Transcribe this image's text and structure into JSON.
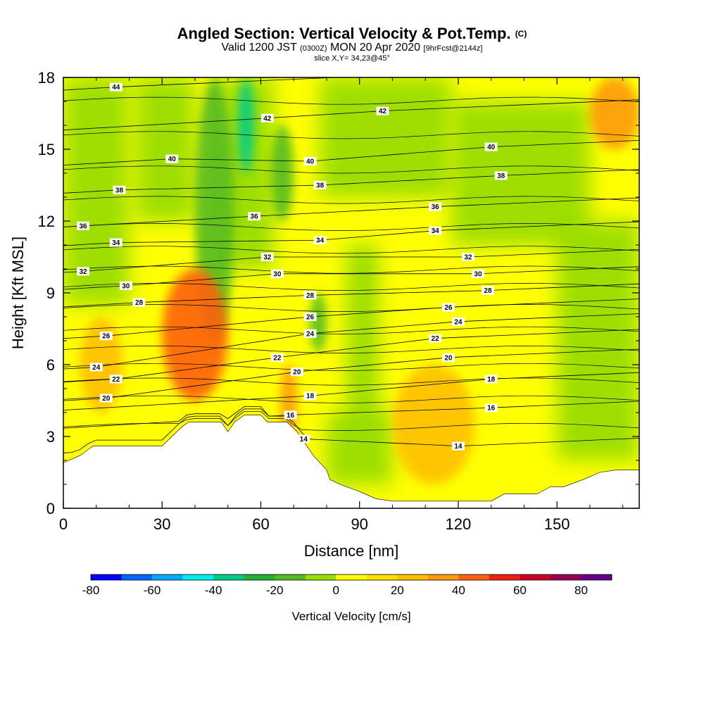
{
  "header": {
    "title_main": "Angled Section: Vertical Velocity & Pot.Temp.",
    "title_unit": "(C)",
    "valid_prefix": "Valid 1200 JST",
    "valid_utc": "(0300Z)",
    "valid_date": "MON 20 Apr 2020",
    "forecast": "[9hrFcst@2144z]",
    "slice": "slice X,Y= 34,23@45°"
  },
  "chart_data": {
    "type": "heatmap",
    "xlabel": "Distance [nm]",
    "ylabel": "Height [Kft MSL]",
    "xlim": [
      0,
      175
    ],
    "ylim": [
      0,
      18
    ],
    "x_ticks": [
      0,
      30,
      60,
      90,
      120,
      150
    ],
    "y_ticks": [
      0,
      3,
      6,
      9,
      12,
      15,
      18
    ],
    "colorbar": {
      "title": "Vertical Velocity [cm/s]",
      "range": [
        -80,
        90
      ],
      "step": 10,
      "labels": [
        -80,
        -60,
        -40,
        -20,
        0,
        20,
        40,
        60,
        80
      ],
      "colors": [
        "#0000ff",
        "#0066ff",
        "#00aaff",
        "#00eeee",
        "#00cc88",
        "#22b030",
        "#55bb22",
        "#99dd00",
        "#ffff00",
        "#ffe000",
        "#ffc000",
        "#ff9a10",
        "#ff6010",
        "#ee2010",
        "#cc0022",
        "#990055",
        "#660088"
      ]
    },
    "terrain_heights_kft": [
      [
        0,
        1.9
      ],
      [
        5,
        2.2
      ],
      [
        9,
        2.6
      ],
      [
        13,
        2.6
      ],
      [
        20,
        2.6
      ],
      [
        30,
        2.6
      ],
      [
        33,
        3.0
      ],
      [
        36,
        3.4
      ],
      [
        38,
        3.6
      ],
      [
        45,
        3.6
      ],
      [
        48,
        3.6
      ],
      [
        50,
        3.2
      ],
      [
        52,
        3.6
      ],
      [
        55,
        3.9
      ],
      [
        60,
        3.9
      ],
      [
        62,
        3.6
      ],
      [
        68,
        3.6
      ],
      [
        71,
        3.2
      ],
      [
        74,
        2.6
      ],
      [
        76,
        2.2
      ],
      [
        78,
        1.9
      ],
      [
        80,
        1.6
      ],
      [
        81,
        1.2
      ],
      [
        84,
        1.0
      ],
      [
        90,
        0.7
      ],
      [
        95,
        0.4
      ],
      [
        100,
        0.3
      ],
      [
        130,
        0.3
      ],
      [
        134,
        0.6
      ],
      [
        144,
        0.6
      ],
      [
        148,
        0.9
      ],
      [
        152,
        0.9
      ],
      [
        158,
        1.2
      ],
      [
        163,
        1.5
      ],
      [
        168,
        1.6
      ],
      [
        175,
        1.6
      ]
    ],
    "updraft_regions": [
      {
        "x": [
          30,
          50
        ],
        "y": [
          4.5,
          10
        ],
        "value": 40
      },
      {
        "x": [
          5,
          18
        ],
        "y": [
          4,
          8
        ],
        "value": 25
      },
      {
        "x": [
          100,
          125
        ],
        "y": [
          1,
          6
        ],
        "value": 25
      },
      {
        "x": [
          160,
          175
        ],
        "y": [
          15,
          18
        ],
        "value": 30
      },
      {
        "x": [
          66,
          71
        ],
        "y": [
          3,
          6
        ],
        "value": 30
      }
    ],
    "downdraft_regions": [
      {
        "x": [
          40,
          52
        ],
        "y": [
          7,
          18
        ],
        "value": -20
      },
      {
        "x": [
          53,
          58
        ],
        "y": [
          14,
          18
        ],
        "value": -40
      },
      {
        "x": [
          75,
          80
        ],
        "y": [
          6.5,
          9
        ],
        "value": -20
      },
      {
        "x": [
          63,
          70
        ],
        "y": [
          12,
          16
        ],
        "value": -15
      }
    ],
    "theta_contour_labels": [
      {
        "x": 16,
        "y": 17.6,
        "text": "44"
      },
      {
        "x": 62,
        "y": 16.3,
        "text": "42"
      },
      {
        "x": 97,
        "y": 16.6,
        "text": "42"
      },
      {
        "x": 33,
        "y": 14.6,
        "text": "40"
      },
      {
        "x": 75,
        "y": 14.5,
        "text": "40"
      },
      {
        "x": 130,
        "y": 15.1,
        "text": "40"
      },
      {
        "x": 17,
        "y": 13.3,
        "text": "38"
      },
      {
        "x": 78,
        "y": 13.5,
        "text": "38"
      },
      {
        "x": 133,
        "y": 13.9,
        "text": "38"
      },
      {
        "x": 6,
        "y": 11.8,
        "text": "36"
      },
      {
        "x": 58,
        "y": 12.2,
        "text": "36"
      },
      {
        "x": 113,
        "y": 12.6,
        "text": "36"
      },
      {
        "x": 16,
        "y": 11.1,
        "text": "34"
      },
      {
        "x": 78,
        "y": 11.2,
        "text": "34"
      },
      {
        "x": 113,
        "y": 11.6,
        "text": "34"
      },
      {
        "x": 6,
        "y": 9.9,
        "text": "32"
      },
      {
        "x": 62,
        "y": 10.5,
        "text": "32"
      },
      {
        "x": 123,
        "y": 10.5,
        "text": "32"
      },
      {
        "x": 19,
        "y": 9.3,
        "text": "30"
      },
      {
        "x": 65,
        "y": 9.8,
        "text": "30"
      },
      {
        "x": 126,
        "y": 9.8,
        "text": "30"
      },
      {
        "x": 23,
        "y": 8.6,
        "text": "28"
      },
      {
        "x": 75,
        "y": 8.9,
        "text": "28"
      },
      {
        "x": 129,
        "y": 9.1,
        "text": "28"
      },
      {
        "x": 13,
        "y": 7.2,
        "text": "26"
      },
      {
        "x": 75,
        "y": 8.0,
        "text": "26"
      },
      {
        "x": 117,
        "y": 8.4,
        "text": "26"
      },
      {
        "x": 10,
        "y": 5.9,
        "text": "24"
      },
      {
        "x": 75,
        "y": 7.3,
        "text": "24"
      },
      {
        "x": 120,
        "y": 7.8,
        "text": "24"
      },
      {
        "x": 16,
        "y": 5.4,
        "text": "22"
      },
      {
        "x": 65,
        "y": 6.3,
        "text": "22"
      },
      {
        "x": 113,
        "y": 7.1,
        "text": "22"
      },
      {
        "x": 13,
        "y": 4.6,
        "text": "20"
      },
      {
        "x": 71,
        "y": 5.7,
        "text": "20"
      },
      {
        "x": 117,
        "y": 6.3,
        "text": "20"
      },
      {
        "x": 75,
        "y": 4.7,
        "text": "18"
      },
      {
        "x": 130,
        "y": 5.4,
        "text": "18"
      },
      {
        "x": 69,
        "y": 3.9,
        "text": "16"
      },
      {
        "x": 130,
        "y": 4.2,
        "text": "16"
      },
      {
        "x": 73,
        "y": 2.9,
        "text": "14"
      },
      {
        "x": 120,
        "y": 2.6,
        "text": "14"
      }
    ]
  }
}
